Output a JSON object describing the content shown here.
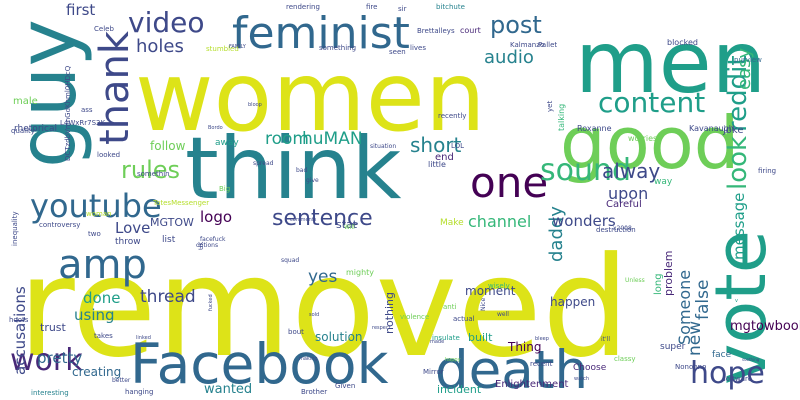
{
  "palette": {
    "yellow": "#dde318",
    "lime": "#b5de2b",
    "green": "#6ece58",
    "sea": "#35b779",
    "teal": "#1f9e89",
    "cyan": "#26828e",
    "blue": "#31688e",
    "navy": "#3e4989",
    "violet": "#482878",
    "plum": "#440154"
  },
  "words": [
    {
      "text": "removed",
      "color": "yellow"
    },
    {
      "text": "women",
      "color": "yellow"
    },
    {
      "text": "men",
      "color": "teal"
    },
    {
      "text": "good",
      "color": "green"
    },
    {
      "text": "guy",
      "color": "cyan"
    },
    {
      "text": "think",
      "color": "cyan"
    },
    {
      "text": "vote",
      "color": "teal"
    },
    {
      "text": "Facebook",
      "color": "blue"
    },
    {
      "text": "death",
      "color": "blue"
    },
    {
      "text": "feminist",
      "color": "blue"
    },
    {
      "text": "one",
      "color": "plum"
    },
    {
      "text": "thank",
      "color": "navy"
    },
    {
      "text": "content",
      "color": "teal"
    },
    {
      "text": "amp",
      "color": "blue"
    },
    {
      "text": "youtube",
      "color": "blue"
    },
    {
      "text": "sound",
      "color": "sea"
    },
    {
      "text": "work",
      "color": "violet"
    },
    {
      "text": "hope",
      "color": "navy"
    },
    {
      "text": "look",
      "color": "sea"
    },
    {
      "text": "reddit",
      "color": "teal"
    },
    {
      "text": "rules",
      "color": "green"
    },
    {
      "text": "sentence",
      "color": "navy"
    },
    {
      "text": "video",
      "color": "navy"
    },
    {
      "text": "post",
      "color": "blue"
    },
    {
      "text": "audio",
      "color": "cyan"
    },
    {
      "text": "holes",
      "color": "navy"
    },
    {
      "text": "alway",
      "color": "navy"
    },
    {
      "text": "easy",
      "color": "sea"
    },
    {
      "text": "daddy",
      "color": "cyan"
    },
    {
      "text": "short",
      "color": "cyan"
    },
    {
      "text": "room",
      "color": "teal"
    },
    {
      "text": "huMAN",
      "color": "teal"
    },
    {
      "text": "thread",
      "color": "navy"
    },
    {
      "text": "logo",
      "color": "plum"
    },
    {
      "text": "Love",
      "color": "navy"
    },
    {
      "text": "wonders",
      "color": "navy"
    },
    {
      "text": "upon",
      "color": "navy"
    },
    {
      "text": "channel",
      "color": "sea"
    },
    {
      "text": "message",
      "color": "teal"
    },
    {
      "text": "accusations",
      "color": "navy"
    },
    {
      "text": "pretty",
      "color": "blue"
    },
    {
      "text": "yes",
      "color": "blue"
    },
    {
      "text": "false",
      "color": "blue"
    },
    {
      "text": "new",
      "color": "blue"
    },
    {
      "text": "Someone",
      "color": "blue"
    },
    {
      "text": "mgtowbooks",
      "color": "plum"
    },
    {
      "text": "first",
      "color": "navy"
    },
    {
      "text": "using",
      "color": "cyan"
    },
    {
      "text": "done",
      "color": "teal"
    },
    {
      "text": "follow",
      "color": "green"
    },
    {
      "text": "MGTOW",
      "color": "navy"
    },
    {
      "text": "creating",
      "color": "blue"
    },
    {
      "text": "happen",
      "color": "navy"
    },
    {
      "text": "solution",
      "color": "cyan"
    },
    {
      "text": "wanted",
      "color": "cyan"
    },
    {
      "text": "trust",
      "color": "navy"
    },
    {
      "text": "Thing",
      "color": "plum"
    },
    {
      "text": "built",
      "color": "teal"
    },
    {
      "text": "stat",
      "color": "navy"
    },
    {
      "text": "nothing",
      "color": "navy"
    },
    {
      "text": "moment",
      "color": "navy"
    },
    {
      "text": "incident",
      "color": "teal"
    },
    {
      "text": "Enlightenment",
      "color": "violet"
    },
    {
      "text": "Careful",
      "color": "violet"
    },
    {
      "text": "end",
      "color": "violet"
    },
    {
      "text": "list",
      "color": "navy"
    },
    {
      "text": "throw",
      "color": "navy"
    },
    {
      "text": "away",
      "color": "teal"
    },
    {
      "text": "way",
      "color": "sea"
    },
    {
      "text": "problem",
      "color": "violet"
    },
    {
      "text": "long",
      "color": "sea"
    },
    {
      "text": "Make",
      "color": "lime"
    },
    {
      "text": "rhetorical",
      "color": "navy"
    },
    {
      "text": "male",
      "color": "green"
    },
    {
      "text": "Choose",
      "color": "violet"
    },
    {
      "text": "super",
      "color": "navy"
    },
    {
      "text": "face",
      "color": "blue"
    },
    {
      "text": "joke",
      "color": "navy"
    },
    {
      "text": "Roxanne",
      "color": "navy"
    },
    {
      "text": "worries",
      "color": "green"
    },
    {
      "text": "Kavanaugh",
      "color": "navy"
    },
    {
      "text": "mighty",
      "color": "green"
    },
    {
      "text": "talking",
      "color": "sea"
    },
    {
      "text": "little",
      "color": "navy"
    },
    {
      "text": "blocked",
      "color": "navy"
    },
    {
      "text": "court",
      "color": "violet"
    },
    {
      "text": "sir",
      "color": "navy"
    },
    {
      "text": "fire",
      "color": "navy"
    },
    {
      "text": "bitchute",
      "color": "cyan"
    },
    {
      "text": "Brettalleys",
      "color": "navy"
    },
    {
      "text": "Kalmanzo",
      "color": "navy"
    },
    {
      "text": "Pallet",
      "color": "navy"
    },
    {
      "text": "purview",
      "color": "blue"
    },
    {
      "text": "lives",
      "color": "navy"
    },
    {
      "text": "seen",
      "color": "navy"
    },
    {
      "text": "something",
      "color": "navy"
    },
    {
      "text": "stumbled",
      "color": "lime"
    },
    {
      "text": "Celeb",
      "color": "navy"
    },
    {
      "text": "rendering",
      "color": "navy"
    },
    {
      "text": "ass",
      "color": "navy"
    },
    {
      "text": "L4WxRr7S2K",
      "color": "navy"
    },
    {
      "text": "DCTzdbVmnGdKhml0HDcQ",
      "color": "navy"
    },
    {
      "text": "quality",
      "color": "navy"
    },
    {
      "text": "inequality",
      "color": "navy"
    },
    {
      "text": "looked",
      "color": "navy"
    },
    {
      "text": "somethin",
      "color": "navy"
    },
    {
      "text": "Big",
      "color": "green"
    },
    {
      "text": "spread",
      "color": "navy"
    },
    {
      "text": "situation",
      "color": "navy"
    },
    {
      "text": "bad",
      "color": "navy"
    },
    {
      "text": "give",
      "color": "navy"
    },
    {
      "text": "LOL",
      "color": "navy"
    },
    {
      "text": "recently",
      "color": "navy"
    },
    {
      "text": "yet",
      "color": "navy"
    },
    {
      "text": "anti",
      "color": "green"
    },
    {
      "text": "actual",
      "color": "navy"
    },
    {
      "text": "well",
      "color": "navy"
    },
    {
      "text": "wisely",
      "color": "sea"
    },
    {
      "text": "Nice",
      "color": "navy"
    },
    {
      "text": "violence",
      "color": "green"
    },
    {
      "text": "insulate",
      "color": "teal"
    },
    {
      "text": "Mirror",
      "color": "navy"
    },
    {
      "text": "recent",
      "color": "navy"
    },
    {
      "text": "Nononno",
      "color": "navy"
    },
    {
      "text": "software",
      "color": "navy"
    },
    {
      "text": "classy",
      "color": "green"
    },
    {
      "text": "it'll",
      "color": "navy"
    },
    {
      "text": "bout",
      "color": "navy"
    },
    {
      "text": "Given",
      "color": "navy"
    },
    {
      "text": "Brother",
      "color": "navy"
    },
    {
      "text": "hanging",
      "color": "navy"
    },
    {
      "text": "interesting",
      "color": "cyan"
    },
    {
      "text": "better",
      "color": "navy"
    },
    {
      "text": "hoots",
      "color": "navy"
    },
    {
      "text": "takes",
      "color": "navy"
    },
    {
      "text": "controversy",
      "color": "navy"
    },
    {
      "text": "two",
      "color": "navy"
    },
    {
      "text": "options",
      "color": "navy"
    },
    {
      "text": "squad",
      "color": "navy"
    },
    {
      "text": "firing",
      "color": "navy"
    },
    {
      "text": "Unless",
      "color": "green"
    },
    {
      "text": "x2008",
      "color": "navy"
    },
    {
      "text": "destruction",
      "color": "navy"
    },
    {
      "text": "Will",
      "color": "green"
    },
    {
      "text": "facefuck",
      "color": "navy"
    },
    {
      "text": "fucked",
      "color": "navy"
    },
    {
      "text": "TotesMessenger",
      "color": "lime"
    },
    {
      "text": "woman",
      "color": "lime"
    },
    {
      "text": "v",
      "color": "teal"
    },
    {
      "text": "UK",
      "color": "navy"
    },
    {
      "text": "respect",
      "color": "navy"
    },
    {
      "text": "made",
      "color": "navy"
    },
    {
      "text": "watch",
      "color": "navy"
    },
    {
      "text": "bleep",
      "color": "navy"
    },
    {
      "text": "happy",
      "color": "green"
    },
    {
      "text": "comments",
      "color": "navy"
    },
    {
      "text": "sold",
      "color": "navy"
    },
    {
      "text": "making",
      "color": "navy"
    },
    {
      "text": "linked",
      "color": "navy"
    },
    {
      "text": "Bordo",
      "color": "navy"
    },
    {
      "text": "bloop",
      "color": "navy"
    },
    {
      "text": "FAMILY",
      "color": "navy"
    },
    {
      "text": "soothing",
      "color": "navy"
    },
    {
      "text": "cooking",
      "color": "navy"
    },
    {
      "text": "thank_you_mgtow_family",
      "color": "navy"
    }
  ]
}
